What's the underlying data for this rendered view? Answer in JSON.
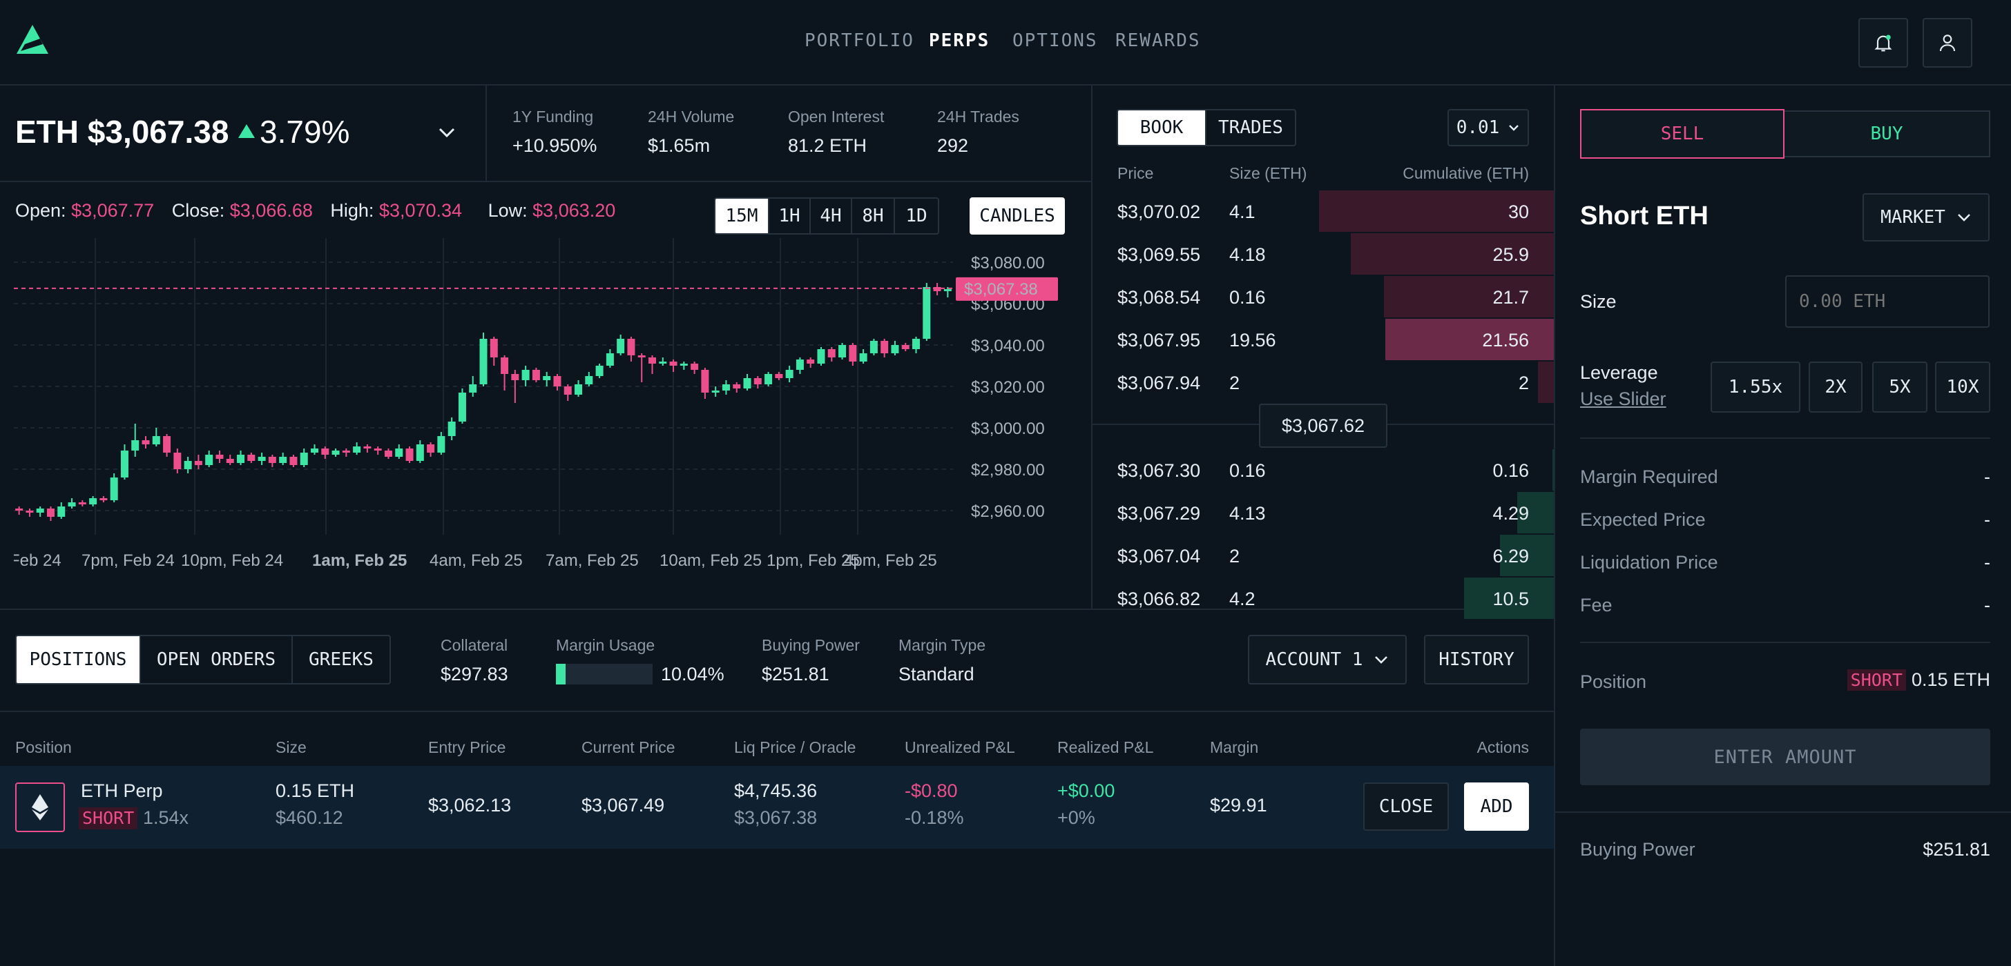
{
  "nav": {
    "items": [
      "PORTFOLIO",
      "PERPS",
      "OPTIONS",
      "REWARDS"
    ],
    "active": "PERPS"
  },
  "market": {
    "symbol": "ETH",
    "price": "$3,067.38",
    "change": "3.79%",
    "stats": [
      {
        "label": "1Y Funding",
        "value": "+10.950%"
      },
      {
        "label": "24H Volume",
        "value": "$1.65m"
      },
      {
        "label": "Open Interest",
        "value": "81.2 ETH"
      },
      {
        "label": "24H Trades",
        "value": "292"
      }
    ]
  },
  "ohlc": {
    "open_label": "Open:",
    "open": "$3,067.77",
    "close_label": "Close:",
    "close": "$3,066.68",
    "high_label": "High:",
    "high": "$3,070.34",
    "low_label": "Low:",
    "low": "$3,063.20"
  },
  "timeframes": [
    "15M",
    "1H",
    "4H",
    "8H",
    "1D"
  ],
  "timeframe_selected": "15M",
  "chart_style_label": "CANDLES",
  "chart_data": {
    "type": "candlestick",
    "y_ticks": [
      "$3,080.00",
      "$3,060.00",
      "$3,040.00",
      "$3,020.00",
      "$3,000.00",
      "$2,980.00",
      "$2,960.00"
    ],
    "ylim": [
      2950,
      3090
    ],
    "x_ticks": [
      "Feb 24",
      "7pm, Feb 24",
      "10pm, Feb 24",
      "1am, Feb 25",
      "4am, Feb 25",
      "7am, Feb 25",
      "10am, Feb 25",
      "1pm, Feb 25",
      "4pm, Feb 25"
    ],
    "current_price_label": "$3,067.38",
    "current_price": 3067.38,
    "candles": [
      [
        2961,
        2960,
        2962,
        2958
      ],
      [
        2960,
        2959,
        2961,
        2957
      ],
      [
        2959,
        2961,
        2962,
        2957
      ],
      [
        2961,
        2957,
        2962,
        2955
      ],
      [
        2957,
        2962,
        2964,
        2956
      ],
      [
        2962,
        2964,
        2966,
        2961
      ],
      [
        2964,
        2963,
        2965,
        2962
      ],
      [
        2963,
        2966,
        2967,
        2962
      ],
      [
        2966,
        2965,
        2967,
        2964
      ],
      [
        2965,
        2976,
        2978,
        2964
      ],
      [
        2976,
        2989,
        2992,
        2975
      ],
      [
        2989,
        2994,
        3002,
        2986
      ],
      [
        2994,
        2992,
        2996,
        2990
      ],
      [
        2992,
        2996,
        3000,
        2991
      ],
      [
        2996,
        2988,
        2997,
        2986
      ],
      [
        2988,
        2980,
        2990,
        2978
      ],
      [
        2980,
        2984,
        2986,
        2978
      ],
      [
        2984,
        2982,
        2987,
        2980
      ],
      [
        2982,
        2987,
        2989,
        2981
      ],
      [
        2987,
        2985,
        2989,
        2983
      ],
      [
        2985,
        2983,
        2987,
        2982
      ],
      [
        2983,
        2987,
        2989,
        2982
      ],
      [
        2987,
        2984,
        2988,
        2983
      ],
      [
        2984,
        2986,
        2988,
        2982
      ],
      [
        2986,
        2983,
        2987,
        2981
      ],
      [
        2983,
        2986,
        2988,
        2982
      ],
      [
        2986,
        2982,
        2987,
        2981
      ],
      [
        2982,
        2988,
        2990,
        2981
      ],
      [
        2988,
        2990,
        2992,
        2987
      ],
      [
        2990,
        2987,
        2991,
        2985
      ],
      [
        2987,
        2989,
        2990,
        2986
      ],
      [
        2989,
        2988,
        2990,
        2986
      ],
      [
        2988,
        2991,
        2993,
        2987
      ],
      [
        2991,
        2990,
        2992,
        2988
      ],
      [
        2990,
        2989,
        2991,
        2987
      ],
      [
        2989,
        2986,
        2990,
        2985
      ],
      [
        2986,
        2990,
        2992,
        2985
      ],
      [
        2990,
        2984,
        2991,
        2983
      ],
      [
        2984,
        2992,
        2994,
        2983
      ],
      [
        2992,
        2988,
        2993,
        2986
      ],
      [
        2988,
        2996,
        2998,
        2987
      ],
      [
        2996,
        3003,
        3005,
        2994
      ],
      [
        3003,
        3017,
        3019,
        3002
      ],
      [
        3017,
        3021,
        3025,
        3015
      ],
      [
        3021,
        3043,
        3046,
        3020
      ],
      [
        3043,
        3034,
        3044,
        3030
      ],
      [
        3034,
        3026,
        3035,
        3018
      ],
      [
        3026,
        3023,
        3028,
        3012
      ],
      [
        3023,
        3028,
        3030,
        3020
      ],
      [
        3028,
        3023,
        3029,
        3022
      ],
      [
        3023,
        3025,
        3027,
        3020
      ],
      [
        3025,
        3020,
        3026,
        3018
      ],
      [
        3020,
        3016,
        3021,
        3013
      ],
      [
        3016,
        3021,
        3023,
        3015
      ],
      [
        3021,
        3025,
        3027,
        3020
      ],
      [
        3025,
        3030,
        3031,
        3024
      ],
      [
        3030,
        3036,
        3038,
        3029
      ],
      [
        3036,
        3043,
        3045,
        3035
      ],
      [
        3043,
        3035,
        3044,
        3032
      ],
      [
        3035,
        3034,
        3036,
        3022
      ],
      [
        3034,
        3031,
        3035,
        3026
      ],
      [
        3031,
        3032,
        3034,
        3030
      ],
      [
        3032,
        3030,
        3033,
        3027
      ],
      [
        3030,
        3031,
        3032,
        3028
      ],
      [
        3031,
        3028,
        3032,
        3026
      ],
      [
        3028,
        3017,
        3029,
        3014
      ],
      [
        3017,
        3018,
        3020,
        3015
      ],
      [
        3018,
        3021,
        3023,
        3016
      ],
      [
        3021,
        3019,
        3022,
        3017
      ],
      [
        3019,
        3024,
        3026,
        3018
      ],
      [
        3024,
        3021,
        3025,
        3019
      ],
      [
        3021,
        3026,
        3027,
        3020
      ],
      [
        3026,
        3024,
        3027,
        3023
      ],
      [
        3024,
        3028,
        3030,
        3022
      ],
      [
        3028,
        3033,
        3034,
        3026
      ],
      [
        3033,
        3031,
        3034,
        3029
      ],
      [
        3031,
        3038,
        3039,
        3030
      ],
      [
        3038,
        3034,
        3039,
        3032
      ],
      [
        3034,
        3040,
        3041,
        3033
      ],
      [
        3040,
        3032,
        3041,
        3030
      ],
      [
        3032,
        3036,
        3038,
        3031
      ],
      [
        3036,
        3042,
        3043,
        3035
      ],
      [
        3042,
        3036,
        3043,
        3034
      ],
      [
        3036,
        3040,
        3042,
        3035
      ],
      [
        3040,
        3038,
        3041,
        3037
      ],
      [
        3038,
        3043,
        3044,
        3036
      ],
      [
        3043,
        3068,
        3070,
        3042
      ],
      [
        3068,
        3066,
        3070,
        3064
      ],
      [
        3066,
        3067,
        3068,
        3063
      ]
    ]
  },
  "orderbook": {
    "tabs": [
      "BOOK",
      "TRADES"
    ],
    "tab_selected": "BOOK",
    "precision": "0.01",
    "headers": [
      "Price",
      "Size (ETH)",
      "Cumulative (ETH)"
    ],
    "asks": [
      {
        "price": "$3,070.02",
        "size": "4.1",
        "cum": "30",
        "depth": 0.3
      },
      {
        "price": "$3,069.55",
        "size": "4.18",
        "cum": "25.9",
        "depth": 0.259
      },
      {
        "price": "$3,068.54",
        "size": "0.16",
        "cum": "21.7",
        "depth": 0.217
      },
      {
        "price": "$3,067.95",
        "size": "19.56",
        "cum": "21.56",
        "depth": 0.2156
      },
      {
        "price": "$3,067.94",
        "size": "2",
        "cum": "2",
        "depth": 0.02
      }
    ],
    "mid": "$3,067.62",
    "bids": [
      {
        "price": "$3,067.30",
        "size": "0.16",
        "cum": "0.16",
        "depth": 0.0016
      },
      {
        "price": "$3,067.29",
        "size": "4.13",
        "cum": "4.29",
        "depth": 0.0429
      },
      {
        "price": "$3,067.04",
        "size": "2",
        "cum": "6.29",
        "depth": 0.0629
      },
      {
        "price": "$3,066.82",
        "size": "4.2",
        "cum": "10.5",
        "depth": 0.105
      }
    ]
  },
  "bottom": {
    "tabs": [
      "POSITIONS",
      "OPEN ORDERS",
      "GREEKS"
    ],
    "tab_selected": "POSITIONS",
    "collateral_label": "Collateral",
    "collateral": "$297.83",
    "margin_usage_label": "Margin Usage",
    "margin_usage": "10.04%",
    "margin_usage_fraction": 0.1004,
    "buying_power_label": "Buying Power",
    "buying_power": "$251.81",
    "margin_type_label": "Margin Type",
    "margin_type": "Standard",
    "account": "ACCOUNT 1",
    "history": "HISTORY",
    "headers": [
      "Position",
      "Size",
      "Entry Price",
      "Current Price",
      "Liq Price / Oracle",
      "Unrealized P&L",
      "Realized P&L",
      "Margin",
      "Actions"
    ],
    "row": {
      "name": "ETH Perp",
      "side": "SHORT",
      "leverage": "1.54x",
      "size": "0.15 ETH",
      "size_usd": "$460.12",
      "entry": "$3,062.13",
      "current": "$3,067.49",
      "liq": "$4,745.36",
      "oracle": "$3,067.38",
      "upnl": "-$0.80",
      "upnl_pct": "-0.18%",
      "rpnl": "+$0.00",
      "rpnl_pct": "+0%",
      "margin": "$29.91",
      "close": "CLOSE",
      "add": "ADD"
    }
  },
  "order_panel": {
    "sell": "SELL",
    "buy": "BUY",
    "title": "Short ETH",
    "order_type": "MARKET",
    "size_label": "Size",
    "size_placeholder": "0.00 ETH",
    "leverage_label": "Leverage",
    "slider_link": "Use Slider",
    "leverage_options": [
      "1.55x",
      "2X",
      "5X",
      "10X"
    ],
    "rows": [
      {
        "label": "Margin Required",
        "value": "-"
      },
      {
        "label": "Expected Price",
        "value": "-"
      },
      {
        "label": "Liquidation Price",
        "value": "-"
      },
      {
        "label": "Fee",
        "value": "-"
      }
    ],
    "position_label": "Position",
    "position_side": "SHORT",
    "position_size": "0.15 ETH",
    "submit": "ENTER AMOUNT",
    "buying_power_label": "Buying Power",
    "buying_power": "$251.81"
  },
  "colors": {
    "accent_green": "#3ee6a6",
    "accent_pink": "#ec4f8b",
    "bg": "#0c151e"
  }
}
